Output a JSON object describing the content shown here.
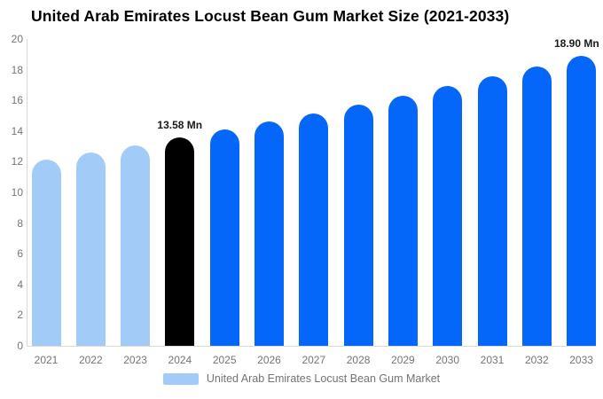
{
  "colors": {
    "historical": "#a3cbf8",
    "highlight": "#000000",
    "forecast": "#0566fa",
    "axis_line": "#d9d9d9",
    "tick_text": "#757575",
    "annotation_text": "#1a1a1a",
    "legend_text": "#737373"
  },
  "legend": {
    "label": "United Arab Emirates Locust Bean Gum Market",
    "swatch_color": "#a3cbf8"
  },
  "chart_data": {
    "type": "bar",
    "title": "United Arab Emirates Locust Bean Gum Market Size (2021-2033)",
    "categories": [
      "2021",
      "2022",
      "2023",
      "2024",
      "2025",
      "2026",
      "2027",
      "2028",
      "2029",
      "2030",
      "2031",
      "2032",
      "2033"
    ],
    "values": [
      12.16,
      12.62,
      13.09,
      13.58,
      14.09,
      14.62,
      15.16,
      15.73,
      16.32,
      16.93,
      17.56,
      18.22,
      18.9
    ],
    "unit": "Mn",
    "series_name": "United Arab Emirates Locust Bean Gum Market",
    "bar_roles": [
      "historical",
      "historical",
      "historical",
      "highlight",
      "forecast",
      "forecast",
      "forecast",
      "forecast",
      "forecast",
      "forecast",
      "forecast",
      "forecast",
      "forecast"
    ],
    "annotations": [
      {
        "category": "2024",
        "label": "13.58 Mn"
      },
      {
        "category": "2033",
        "label": "18.90 Mn"
      }
    ],
    "ylim": [
      0,
      20
    ],
    "yticks": [
      0,
      2,
      4,
      6,
      8,
      10,
      12,
      14,
      16,
      18,
      20
    ],
    "xlabel": "",
    "ylabel": "",
    "grid": false,
    "legend_position": "bottom"
  }
}
